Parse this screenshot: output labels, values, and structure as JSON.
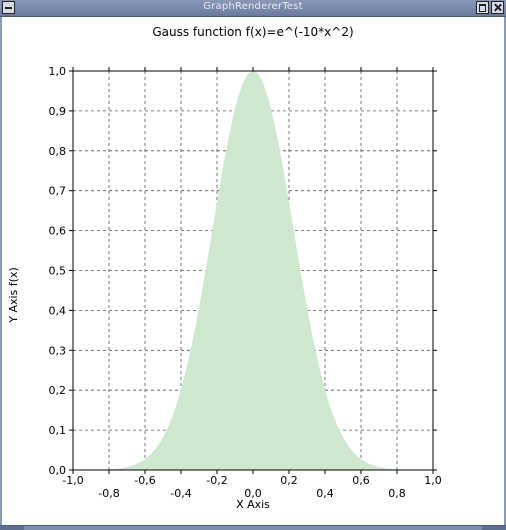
{
  "window": {
    "title": "GraphRendererTest"
  },
  "chart_data": {
    "type": "area",
    "title": "Gauss function f(x)=e^(-10*x^2)",
    "xlabel": "X Axis",
    "ylabel": "Y Axis f(x)",
    "xlim": [
      -1.0,
      1.0
    ],
    "ylim": [
      0.0,
      1.0
    ],
    "x_major_ticks": [
      "-1,0",
      "-0,6",
      "-0,2",
      "0,2",
      "0,6",
      "1,0"
    ],
    "x_minor_ticks": [
      "-0,8",
      "-0,4",
      "0,0",
      "0,4",
      "0,8"
    ],
    "x_tick_values": [
      -1.0,
      -0.8,
      -0.6,
      -0.4,
      -0.2,
      0.0,
      0.2,
      0.4,
      0.6,
      0.8,
      1.0
    ],
    "y_ticks": [
      "0,0",
      "0,1",
      "0,2",
      "0,3",
      "0,4",
      "0,5",
      "0,6",
      "0,7",
      "0,8",
      "0,9",
      "1,0"
    ],
    "y_tick_values": [
      0.0,
      0.1,
      0.2,
      0.3,
      0.4,
      0.5,
      0.6,
      0.7,
      0.8,
      0.9,
      1.0
    ],
    "grid": true,
    "fill_color": "#cfe6cf",
    "series": [
      {
        "x": [
          -0.8,
          -0.7,
          -0.6,
          -0.5,
          -0.4,
          -0.3,
          -0.2,
          -0.1,
          0.0,
          0.1,
          0.2,
          0.3,
          0.4,
          0.5,
          0.6,
          0.7,
          0.8
        ],
        "values": [
          0.002,
          0.007,
          0.027,
          0.082,
          0.202,
          0.407,
          0.67,
          0.905,
          1.0,
          0.905,
          0.67,
          0.407,
          0.202,
          0.082,
          0.027,
          0.007,
          0.002
        ]
      }
    ]
  }
}
